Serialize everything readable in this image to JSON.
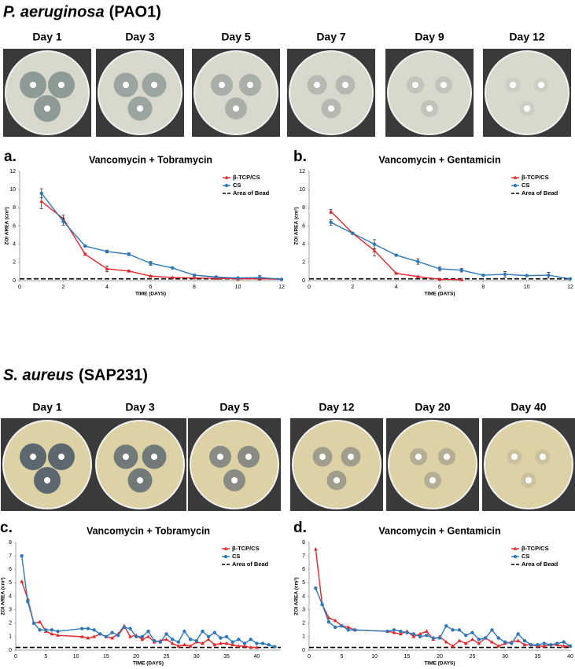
{
  "sections": [
    {
      "organism": "P. aeruginosa",
      "strain": "(PAO1)",
      "photos": [
        "Day 1",
        "Day 3",
        "Day 5",
        "Day 7",
        "Day 9",
        "Day 12"
      ]
    },
    {
      "organism": "S. aureus",
      "strain": "(SAP231)",
      "photos": [
        "Day 1",
        "Day 3",
        "Day 5",
        "Day 12",
        "Day 20",
        "Day 40"
      ]
    }
  ],
  "chart_data": [
    {
      "type": "line",
      "panel": "a.",
      "title": "Vancomycin + Tobramycin",
      "xlabel": "TIME (DAYS)",
      "ylabel": "ZOI AREA (cm²)",
      "xlim": [
        0,
        12
      ],
      "xticks": [
        0,
        2,
        4,
        6,
        8,
        10,
        12
      ],
      "ylim": [
        0,
        12
      ],
      "yticks": [
        0,
        2,
        4,
        6,
        8,
        10,
        12
      ],
      "series": [
        {
          "name": "β-TCP/CS",
          "color": "#e3262b",
          "marker": "triangle",
          "x": [
            1,
            2,
            3,
            4,
            5,
            6,
            7,
            8,
            9,
            10,
            11,
            12
          ],
          "values": [
            8.7,
            6.8,
            2.9,
            1.3,
            1.05,
            0.5,
            0.35,
            0.3,
            0.25,
            0.2,
            0.2,
            0.15
          ],
          "errors": [
            0.8,
            0.4,
            0.1,
            0.3,
            0.1,
            0.05,
            0.05,
            0.05,
            0.05,
            0.05,
            0.05,
            0.05
          ]
        },
        {
          "name": "CS",
          "color": "#2f78b7",
          "marker": "circle",
          "x": [
            1,
            2,
            3,
            4,
            5,
            6,
            7,
            8,
            9,
            10,
            11,
            12
          ],
          "values": [
            9.6,
            6.5,
            3.8,
            3.2,
            2.9,
            1.9,
            1.4,
            0.6,
            0.4,
            0.3,
            0.35,
            0.15
          ],
          "errors": [
            0.5,
            0.4,
            0.1,
            0.15,
            0.15,
            0.2,
            0.1,
            0.1,
            0.05,
            0.05,
            0.2,
            0.05
          ]
        }
      ],
      "reference_line": {
        "name": "Area of Bead",
        "value": 0.2
      }
    },
    {
      "type": "line",
      "panel": "b.",
      "title": "Vancomycin + Gentamicin",
      "xlabel": "TIME (DAYS)",
      "ylabel": "ZOI AREA (cm²)",
      "xlim": [
        0,
        12
      ],
      "xticks": [
        0,
        2,
        4,
        6,
        8,
        10,
        12
      ],
      "ylim": [
        0,
        12
      ],
      "yticks": [
        0,
        2,
        4,
        6,
        8,
        10,
        12
      ],
      "series": [
        {
          "name": "β-TCP/CS",
          "color": "#e3262b",
          "marker": "triangle",
          "x": [
            1,
            2,
            3,
            4,
            5,
            6,
            7
          ],
          "values": [
            7.6,
            5.2,
            3.3,
            0.8,
            0.45,
            0.15,
            0.1
          ],
          "errors": [
            0.2,
            0.1,
            0.6,
            0.05,
            0.05,
            0.05,
            0.05
          ]
        },
        {
          "name": "CS",
          "color": "#2f78b7",
          "marker": "circle",
          "x": [
            1,
            2,
            3,
            4,
            5,
            6,
            7,
            8,
            9,
            10,
            11,
            12
          ],
          "values": [
            6.4,
            5.2,
            4.0,
            2.8,
            2.1,
            1.3,
            1.15,
            0.6,
            0.7,
            0.55,
            0.6,
            0.2
          ],
          "errors": [
            0.3,
            0.1,
            0.5,
            0.1,
            0.3,
            0.2,
            0.2,
            0.1,
            0.3,
            0.1,
            0.3,
            0.05
          ]
        }
      ],
      "reference_line": {
        "name": "Area of Bead",
        "value": 0.2
      }
    },
    {
      "type": "line",
      "panel": "c.",
      "title": "Vancomycin + Tobramycin",
      "xlabel": "TIME (DAYS)",
      "ylabel": "ZOI AREA (cm²)",
      "xlim": [
        0,
        44
      ],
      "xticks": [
        0,
        5,
        10,
        15,
        20,
        25,
        30,
        35,
        40
      ],
      "ylim": [
        0,
        8
      ],
      "yticks": [
        0,
        1,
        2,
        3,
        4,
        5,
        6,
        7,
        8
      ],
      "series": [
        {
          "name": "β-TCP/CS",
          "color": "#e3262b",
          "marker": "triangle",
          "x": [
            1,
            2,
            3,
            4,
            5,
            6,
            7,
            11,
            12,
            13,
            14,
            15,
            16,
            17,
            18,
            19,
            20,
            21,
            22,
            23,
            24,
            25,
            26,
            27,
            28,
            29,
            30,
            31,
            32,
            33,
            34,
            35,
            36,
            37,
            38,
            39,
            40
          ],
          "values": [
            5.1,
            3.8,
            2.0,
            2.1,
            1.4,
            1.2,
            1.1,
            1.0,
            0.9,
            1.0,
            1.2,
            1.0,
            0.9,
            1.2,
            1.8,
            1.0,
            1.1,
            0.8,
            1.0,
            0.6,
            0.7,
            0.8,
            0.5,
            0.3,
            0.4,
            0.3,
            0.6,
            0.5,
            0.8,
            0.4,
            0.5,
            0.5,
            0.4,
            0.3,
            0.3,
            0.2,
            0.2
          ]
        },
        {
          "name": "CS",
          "color": "#2f78b7",
          "marker": "circle",
          "x": [
            1,
            2,
            3,
            4,
            5,
            6,
            7,
            11,
            12,
            13,
            14,
            15,
            16,
            17,
            18,
            19,
            20,
            21,
            22,
            23,
            24,
            25,
            26,
            27,
            28,
            29,
            30,
            31,
            32,
            33,
            34,
            35,
            36,
            37,
            38,
            39,
            40,
            41,
            42,
            43
          ],
          "values": [
            7.0,
            3.6,
            2.0,
            1.5,
            1.5,
            1.5,
            1.4,
            1.6,
            1.6,
            1.5,
            1.2,
            1.0,
            1.3,
            1.1,
            1.7,
            1.6,
            1.0,
            1.0,
            1.4,
            0.7,
            0.6,
            1.2,
            0.8,
            0.6,
            1.4,
            0.8,
            0.7,
            1.4,
            1.0,
            1.3,
            0.9,
            1.0,
            0.6,
            0.8,
            0.5,
            0.8,
            0.5,
            0.5,
            0.4,
            0.25
          ]
        }
      ],
      "reference_line": {
        "name": "Area of Bead",
        "value": 0.2
      }
    },
    {
      "type": "line",
      "panel": "d.",
      "title": "Vancomycin + Gentamicin",
      "xlabel": "TIME (DAYS)",
      "ylabel": "ZOI AREA (cm²)",
      "xlim": [
        0,
        40
      ],
      "xticks": [
        0,
        5,
        10,
        15,
        20,
        25,
        30,
        35,
        40
      ],
      "ylim": [
        0,
        8
      ],
      "yticks": [
        0,
        1,
        2,
        3,
        4,
        5,
        6,
        7,
        8
      ],
      "series": [
        {
          "name": "β-TCP/CS",
          "color": "#e3262b",
          "marker": "triangle",
          "x": [
            1,
            2,
            3,
            4,
            5,
            6,
            7,
            12,
            13,
            14,
            15,
            16,
            17,
            18,
            19,
            20,
            21,
            22,
            23,
            24,
            25,
            26,
            27,
            28,
            29,
            30,
            31,
            32,
            33,
            34,
            35,
            36,
            37,
            38,
            39,
            40
          ],
          "values": [
            7.5,
            3.4,
            2.4,
            2.2,
            1.8,
            1.7,
            1.5,
            1.4,
            1.3,
            1.2,
            1.4,
            1.0,
            1.2,
            1.4,
            0.8,
            1.0,
            0.6,
            0.3,
            0.7,
            0.5,
            0.8,
            0.5,
            0.9,
            0.6,
            0.3,
            0.5,
            0.6,
            0.7,
            0.4,
            0.4,
            0.3,
            0.3,
            0.4,
            0.4,
            0.3,
            0.3
          ]
        },
        {
          "name": "CS",
          "color": "#2f78b7",
          "marker": "circle",
          "x": [
            1,
            2,
            3,
            4,
            5,
            6,
            7,
            12,
            13,
            14,
            15,
            16,
            17,
            18,
            19,
            20,
            21,
            22,
            23,
            24,
            25,
            26,
            27,
            28,
            29,
            30,
            31,
            32,
            33,
            34,
            35,
            36,
            37,
            38,
            39,
            40
          ],
          "values": [
            4.6,
            3.4,
            2.1,
            1.7,
            1.8,
            1.5,
            1.5,
            1.4,
            1.5,
            1.4,
            1.3,
            1.2,
            1.0,
            1.1,
            0.9,
            0.9,
            1.8,
            1.5,
            1.5,
            1.1,
            1.3,
            0.8,
            0.9,
            1.5,
            0.9,
            0.6,
            0.5,
            1.2,
            0.7,
            0.4,
            0.4,
            0.5,
            0.4,
            0.5,
            0.6,
            0.3
          ]
        }
      ],
      "reference_line": {
        "name": "Area of Bead",
        "value": 0.2
      }
    }
  ]
}
